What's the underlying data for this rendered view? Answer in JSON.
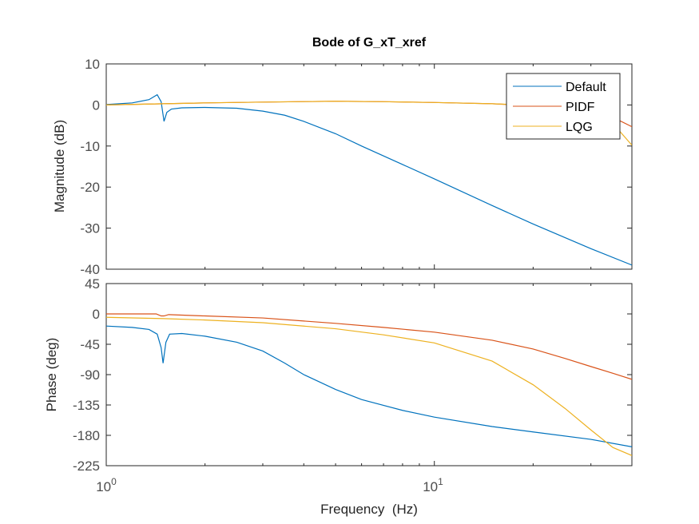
{
  "chart_data": {
    "type": "line",
    "title": "Bode of G_xT_xref",
    "xlabel": "Frequency  (Hz)",
    "xscale": "log",
    "xlim": [
      1,
      40
    ],
    "x_ticks": [
      {
        "value": 1,
        "base": "10",
        "exp": "0"
      },
      {
        "value": 10,
        "base": "10",
        "exp": "1"
      }
    ],
    "legend": {
      "placement": "top-right",
      "entries": [
        "Default",
        "PIDF",
        "LQG"
      ]
    },
    "colors": {
      "Default": "#0072BD",
      "PIDF": "#D95319",
      "LQG": "#EDB120",
      "axes": "#262626",
      "ticklabels": "#4d4d4d"
    },
    "panels": [
      {
        "name": "magnitude",
        "ylabel": "Magnitude (dB)",
        "ylim": [
          -40,
          10
        ],
        "yticks": [
          10,
          0,
          -10,
          -20,
          -30,
          -40
        ],
        "series": [
          {
            "name": "Default",
            "x": [
              1,
              1.2,
              1.35,
              1.43,
              1.47,
              1.5,
              1.53,
              1.58,
              1.7,
              2,
              2.5,
              3,
              3.5,
              4,
              5,
              6,
              8,
              10,
              15,
              20,
              30,
              40
            ],
            "y": [
              0.1,
              0.5,
              1.3,
              2.5,
              0.8,
              -4,
              -1.8,
              -1,
              -0.7,
              -0.6,
              -0.8,
              -1.5,
              -2.5,
              -4,
              -7,
              -10,
              -14.5,
              -18,
              -24.5,
              -29,
              -35,
              -39
            ]
          },
          {
            "name": "PIDF",
            "x": [
              1,
              1.5,
              2,
              3,
              5,
              7,
              10,
              15,
              20,
              25,
              30,
              35,
              40
            ],
            "y": [
              0,
              0.3,
              0.5,
              0.7,
              0.9,
              0.8,
              0.6,
              0.3,
              -0.2,
              -0.7,
              -1.5,
              -3,
              -5.3
            ]
          },
          {
            "name": "LQG",
            "x": [
              1,
              1.5,
              2,
              3,
              5,
              7,
              10,
              15,
              20,
              25,
              30,
              35,
              40
            ],
            "y": [
              0,
              0.3,
              0.5,
              0.7,
              0.9,
              0.8,
              0.6,
              0.3,
              -0.1,
              -0.5,
              -1.5,
              -4.5,
              -9.8
            ]
          }
        ]
      },
      {
        "name": "phase",
        "ylabel": "Phase (deg)",
        "ylim": [
          -225,
          45
        ],
        "yticks": [
          45,
          0,
          -45,
          -90,
          -135,
          -180,
          -225
        ],
        "series": [
          {
            "name": "Default",
            "x": [
              1,
              1.2,
              1.35,
              1.43,
              1.47,
              1.49,
              1.52,
              1.56,
              1.7,
              2,
              2.5,
              3,
              3.5,
              4,
              5,
              6,
              8,
              10,
              15,
              20,
              30,
              40
            ],
            "y": [
              -18,
              -20,
              -23,
              -30,
              -50,
              -73,
              -42,
              -30,
              -29,
              -33,
              -42,
              -55,
              -73,
              -90,
              -112,
              -127,
              -143,
              -153,
              -167,
              -175,
              -186,
              -197
            ]
          },
          {
            "name": "PIDF",
            "x": [
              1,
              1.42,
              1.47,
              1.5,
              1.55,
              2,
              3,
              5,
              7,
              10,
              15,
              20,
              25,
              30,
              35,
              40
            ],
            "y": [
              0,
              0,
              -3,
              -3,
              -1,
              -3,
              -6,
              -14,
              -20,
              -27,
              -39,
              -52,
              -66,
              -78,
              -88,
              -97
            ]
          },
          {
            "name": "LQG",
            "x": [
              1,
              1.5,
              2,
              3,
              5,
              7,
              10,
              15,
              20,
              25,
              30,
              35,
              40
            ],
            "y": [
              -5,
              -7,
              -9,
              -13,
              -22,
              -31,
              -43,
              -70,
              -105,
              -140,
              -172,
              -198,
              -210
            ]
          }
        ]
      }
    ]
  }
}
